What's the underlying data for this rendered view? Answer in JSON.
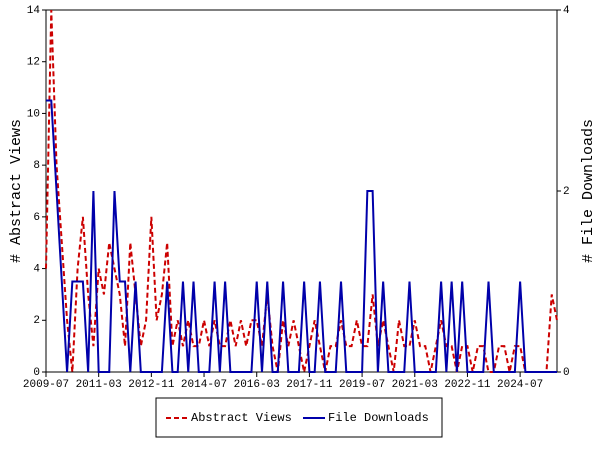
{
  "chart_data": {
    "type": "line",
    "x": [
      "2009-07",
      "2009-09",
      "2009-11",
      "2010-01",
      "2010-03",
      "2010-05",
      "2010-07",
      "2010-09",
      "2010-11",
      "2011-01",
      "2011-03",
      "2011-05",
      "2011-07",
      "2011-09",
      "2011-11",
      "2012-01",
      "2012-03",
      "2012-05",
      "2012-07",
      "2012-09",
      "2012-11",
      "2013-01",
      "2013-03",
      "2013-05",
      "2013-07",
      "2013-09",
      "2013-11",
      "2014-01",
      "2014-03",
      "2014-05",
      "2014-07",
      "2014-09",
      "2014-11",
      "2015-01",
      "2015-03",
      "2015-05",
      "2015-07",
      "2015-09",
      "2015-11",
      "2016-01",
      "2016-03",
      "2016-05",
      "2016-07",
      "2016-09",
      "2016-11",
      "2017-01",
      "2017-03",
      "2017-05",
      "2017-07",
      "2017-09",
      "2017-11",
      "2018-01",
      "2018-03",
      "2018-05",
      "2018-07",
      "2018-09",
      "2018-11",
      "2019-01",
      "2019-03",
      "2019-05",
      "2019-07",
      "2019-09",
      "2019-11",
      "2020-01",
      "2020-03",
      "2020-05",
      "2020-07",
      "2020-09",
      "2020-11",
      "2021-01",
      "2021-03",
      "2021-05",
      "2021-07",
      "2021-09",
      "2021-11",
      "2022-01",
      "2022-03",
      "2022-05",
      "2022-07",
      "2022-09",
      "2022-11",
      "2023-01",
      "2023-03",
      "2023-05",
      "2023-07",
      "2023-09",
      "2023-11",
      "2024-01",
      "2024-03",
      "2024-05",
      "2024-07",
      "2024-09",
      "2024-11",
      "2025-01",
      "2025-03",
      "2025-05",
      "2025-07",
      "2025-09"
    ],
    "xticks": [
      "2009-07",
      "2011-03",
      "2012-11",
      "2014-07",
      "2016-03",
      "2017-11",
      "2019-07",
      "2021-03",
      "2022-11",
      "2024-07"
    ],
    "ylabel": "# Abstract Views",
    "y2label": "# File Downloads",
    "ylim": [
      0,
      14
    ],
    "yticks": [
      0,
      2,
      4,
      6,
      8,
      10,
      12,
      14
    ],
    "y2lim": [
      0,
      4
    ],
    "y2ticks": [
      0,
      2,
      4
    ],
    "series": [
      {
        "name": "Abstract Views",
        "color": "#cc0000",
        "dashed": true,
        "values": [
          4,
          14,
          8,
          5,
          2,
          0,
          4,
          6,
          3,
          1,
          4,
          3,
          5,
          4,
          3,
          1,
          5,
          3,
          1,
          2,
          6,
          2,
          3,
          5,
          1,
          2,
          1,
          2,
          1,
          1,
          2,
          1,
          2,
          1,
          1,
          2,
          1,
          2,
          1,
          2,
          2,
          1,
          3,
          1,
          0,
          2,
          1,
          2,
          1,
          0,
          1,
          2,
          1,
          0,
          1,
          1,
          2,
          1,
          1,
          2,
          1,
          1,
          3,
          1,
          2,
          1,
          0,
          2,
          1,
          1,
          2,
          1,
          1,
          0,
          1,
          2,
          1,
          1,
          0,
          1,
          1,
          0,
          1,
          1,
          0,
          0,
          1,
          1,
          0,
          1,
          1,
          0,
          0,
          0,
          0,
          0,
          3,
          2
        ]
      },
      {
        "name": "File Downloads",
        "color": "#0000aa",
        "dashed": false,
        "axis": "y2",
        "values": [
          3,
          3,
          2,
          1,
          0,
          1,
          1,
          1,
          0,
          2,
          0,
          0,
          0,
          2,
          1,
          1,
          0,
          1,
          0,
          0,
          0,
          0,
          0,
          1,
          0,
          0,
          1,
          0,
          1,
          0,
          0,
          0,
          1,
          0,
          1,
          0,
          0,
          0,
          0,
          0,
          1,
          0,
          1,
          0,
          0,
          1,
          0,
          0,
          0,
          1,
          0,
          0,
          1,
          0,
          0,
          0,
          1,
          0,
          0,
          0,
          0,
          2,
          2,
          0,
          1,
          0,
          0,
          0,
          0,
          1,
          0,
          0,
          0,
          0,
          0,
          1,
          0,
          1,
          0,
          1,
          0,
          0,
          0,
          0,
          1,
          0,
          0,
          0,
          0,
          0,
          1,
          0,
          0,
          0,
          0,
          0,
          0,
          0
        ]
      }
    ]
  }
}
